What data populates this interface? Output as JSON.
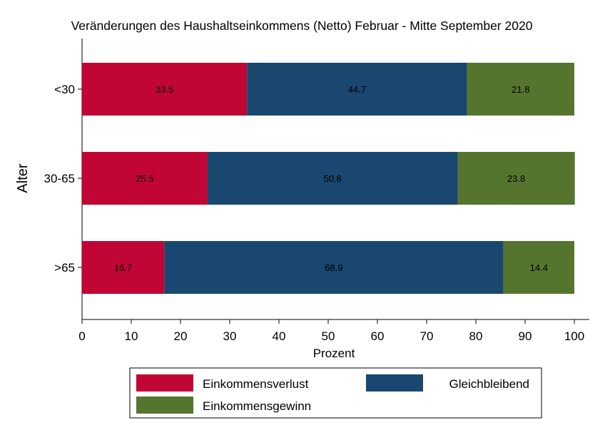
{
  "chart_data": {
    "type": "bar",
    "orientation": "horizontal",
    "stacked": true,
    "title": "Veränderungen des Haushaltseinkommens (Netto) Februar - Mitte September 2020",
    "xlabel": "Prozent",
    "ylabel": "Alter",
    "xlim": [
      0,
      100
    ],
    "xticks": [
      "0",
      "10",
      "20",
      "30",
      "40",
      "50",
      "60",
      "70",
      "80",
      "90",
      "100"
    ],
    "categories": [
      "<30",
      "30-65",
      ">65"
    ],
    "series": [
      {
        "name": "Einkommensverlust",
        "color": "#c10534",
        "values": [
          33.5,
          25.5,
          16.7
        ]
      },
      {
        "name": "Gleichbleibend",
        "color": "#1a476f",
        "values": [
          44.7,
          50.8,
          68.9
        ]
      },
      {
        "name": "Einkommensgewinn",
        "color": "#55752f",
        "values": [
          21.8,
          23.8,
          14.4
        ]
      }
    ],
    "value_labels": [
      [
        "33.5",
        "44.7",
        "21.8"
      ],
      [
        "25.5",
        "50.8",
        "23.8"
      ],
      [
        "16.7",
        "68.9",
        "14.4"
      ]
    ],
    "legend_position": "bottom",
    "grid": false
  }
}
